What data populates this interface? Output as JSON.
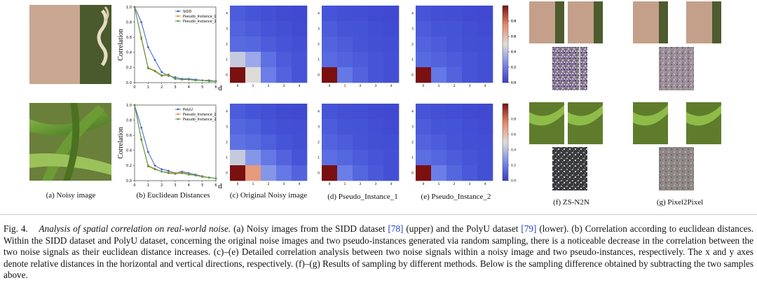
{
  "subcaptions": {
    "a": "(a) Noisy image",
    "b": "(b) Euclidean Distances",
    "c": "(c) Original Noisy image",
    "d": "(d) Pseudo_Instance_1",
    "e": "(e) Pseudo_Instance_2",
    "f": "(f) ZS-N2N",
    "g": "(g) Pixel2Pixel"
  },
  "colors": {
    "line_blue": "#3b5fd0",
    "line_orange": "#e8893a",
    "line_green": "#4f9a3f",
    "heat_red": "#8b1a1a",
    "heat_blue": "#3b3fd6"
  },
  "chart_data": [
    {
      "type": "line",
      "title": "",
      "xlabel": "d",
      "ylabel": "Correlation",
      "x": [
        0,
        1,
        2,
        3,
        4,
        5,
        6
      ],
      "xticks": [
        "0",
        "1",
        "2",
        "3",
        "4",
        "5",
        "6"
      ],
      "yticks": [
        "0.0",
        "0.2",
        "0.4",
        "0.6",
        "0.8",
        "1.0"
      ],
      "ylim": [
        0,
        1.0
      ],
      "legend": "top-right",
      "series": [
        {
          "name": "SIDD",
          "x": [
            0,
            0.5,
            1,
            1.5,
            2,
            2.5,
            3,
            3.5,
            4,
            4.5,
            5,
            5.5,
            6
          ],
          "values": [
            1.0,
            0.8,
            0.47,
            0.3,
            0.14,
            0.09,
            0.07,
            0.05,
            0.05,
            0.04,
            0.03,
            0.03,
            0.02
          ]
        },
        {
          "name": "Pseudo_Instance_1",
          "x": [
            0,
            0.5,
            1,
            1.5,
            2,
            2.5,
            3,
            3.5,
            4,
            4.5,
            5,
            5.5,
            6
          ],
          "values": [
            1.0,
            0.6,
            0.2,
            0.16,
            0.1,
            0.11,
            0.05,
            0.04,
            0.04,
            0.03,
            0.03,
            0.02,
            0.02
          ]
        },
        {
          "name": "Pseudo_Instance_2",
          "x": [
            0,
            0.5,
            1,
            1.5,
            2,
            2.5,
            3,
            3.5,
            4,
            4.5,
            5,
            5.5,
            6
          ],
          "values": [
            1.0,
            0.58,
            0.19,
            0.15,
            0.09,
            0.1,
            0.05,
            0.04,
            0.04,
            0.03,
            0.03,
            0.02,
            0.02
          ]
        }
      ]
    },
    {
      "type": "line",
      "title": "",
      "xlabel": "d",
      "ylabel": "Correlation",
      "x": [
        0,
        1,
        2,
        3,
        4,
        5,
        6
      ],
      "xticks": [
        "0",
        "1",
        "2",
        "3",
        "4",
        "5",
        "6"
      ],
      "yticks": [
        "0.0",
        "0.2",
        "0.4",
        "0.6",
        "0.8",
        "1.0"
      ],
      "ylim": [
        0,
        1.0
      ],
      "legend": "top-right",
      "series": [
        {
          "name": "PolyU",
          "x": [
            0,
            0.5,
            1,
            1.5,
            2,
            2.5,
            3,
            3.5,
            4,
            4.5,
            5,
            5.5,
            6
          ],
          "values": [
            1.0,
            0.7,
            0.38,
            0.2,
            0.15,
            0.13,
            0.1,
            0.12,
            0.1,
            0.08,
            0.06,
            0.04,
            0.03
          ]
        },
        {
          "name": "Pseudo_Instance_1",
          "x": [
            0,
            0.5,
            1,
            1.5,
            2,
            2.5,
            3,
            3.5,
            4,
            4.5,
            5,
            5.5,
            6
          ],
          "values": [
            1.0,
            0.55,
            0.2,
            0.16,
            0.12,
            0.11,
            0.1,
            0.11,
            0.09,
            0.07,
            0.06,
            0.04,
            0.03
          ]
        },
        {
          "name": "Pseudo_Instance_2",
          "x": [
            0,
            0.5,
            1,
            1.5,
            2,
            2.5,
            3,
            3.5,
            4,
            4.5,
            5,
            5.5,
            6
          ],
          "values": [
            1.0,
            0.54,
            0.19,
            0.15,
            0.12,
            0.1,
            0.09,
            0.1,
            0.08,
            0.07,
            0.05,
            0.04,
            0.03
          ]
        }
      ]
    },
    {
      "type": "heatmap",
      "name": "Original Noisy image (SIDD)",
      "xticks": [
        "0",
        "1",
        "2",
        "3",
        "4"
      ],
      "yticks": [
        "0",
        "1",
        "2",
        "3",
        "4"
      ],
      "colorbar_ticks": [
        "0.0",
        "0.2",
        "0.4",
        "0.6",
        "0.8"
      ],
      "vmin": 0,
      "vmax": 1,
      "rows_top_to_bottom": [
        [
          0.12,
          0.1,
          0.08,
          0.06,
          0.05
        ],
        [
          0.14,
          0.12,
          0.1,
          0.08,
          0.06
        ],
        [
          0.16,
          0.15,
          0.12,
          0.1,
          0.08
        ],
        [
          0.45,
          0.36,
          0.18,
          0.12,
          0.1
        ],
        [
          1.0,
          0.5,
          0.22,
          0.14,
          0.1
        ]
      ]
    },
    {
      "type": "heatmap",
      "name": "Pseudo_Instance_1 (SIDD)",
      "xticks": [
        "0",
        "1",
        "2",
        "3",
        "4"
      ],
      "yticks": [
        "0",
        "1",
        "2",
        "3",
        "4"
      ],
      "vmin": 0,
      "vmax": 1,
      "rows_top_to_bottom": [
        [
          0.1,
          0.08,
          0.07,
          0.06,
          0.05
        ],
        [
          0.12,
          0.1,
          0.09,
          0.07,
          0.06
        ],
        [
          0.14,
          0.12,
          0.1,
          0.08,
          0.07
        ],
        [
          0.16,
          0.14,
          0.12,
          0.1,
          0.08
        ],
        [
          1.0,
          0.2,
          0.14,
          0.1,
          0.08
        ]
      ]
    },
    {
      "type": "heatmap",
      "name": "Pseudo_Instance_2 (SIDD)",
      "xticks": [
        "0",
        "1",
        "2",
        "3",
        "4"
      ],
      "yticks": [
        "0",
        "1",
        "2",
        "3",
        "4"
      ],
      "colorbar_ticks": [
        "0.0",
        "0.2",
        "0.4",
        "0.6",
        "0.8"
      ],
      "vmin": 0,
      "vmax": 1,
      "rows_top_to_bottom": [
        [
          0.1,
          0.08,
          0.07,
          0.06,
          0.05
        ],
        [
          0.12,
          0.1,
          0.09,
          0.07,
          0.06
        ],
        [
          0.14,
          0.12,
          0.1,
          0.08,
          0.07
        ],
        [
          0.16,
          0.14,
          0.12,
          0.1,
          0.08
        ],
        [
          1.0,
          0.2,
          0.14,
          0.1,
          0.08
        ]
      ]
    },
    {
      "type": "heatmap",
      "name": "Original Noisy image (PolyU)",
      "xticks": [
        "0",
        "1",
        "2",
        "3",
        "4"
      ],
      "yticks": [
        "0",
        "1",
        "2",
        "3",
        "4"
      ],
      "vmin": 0,
      "vmax": 1,
      "rows_top_to_bottom": [
        [
          0.12,
          0.1,
          0.08,
          0.06,
          0.05
        ],
        [
          0.15,
          0.13,
          0.1,
          0.08,
          0.07
        ],
        [
          0.18,
          0.16,
          0.13,
          0.1,
          0.08
        ],
        [
          0.45,
          0.3,
          0.2,
          0.14,
          0.1
        ],
        [
          1.0,
          0.66,
          0.3,
          0.2,
          0.14
        ]
      ]
    },
    {
      "type": "heatmap",
      "name": "Pseudo_Instance_1 (PolyU)",
      "xticks": [
        "0",
        "1",
        "2",
        "3",
        "4"
      ],
      "yticks": [
        "0",
        "1",
        "2",
        "3",
        "4"
      ],
      "vmin": 0,
      "vmax": 1,
      "rows_top_to_bottom": [
        [
          0.1,
          0.08,
          0.07,
          0.06,
          0.05
        ],
        [
          0.12,
          0.1,
          0.09,
          0.07,
          0.06
        ],
        [
          0.14,
          0.12,
          0.1,
          0.08,
          0.07
        ],
        [
          0.17,
          0.15,
          0.12,
          0.1,
          0.08
        ],
        [
          1.0,
          0.22,
          0.15,
          0.11,
          0.08
        ]
      ]
    },
    {
      "type": "heatmap",
      "name": "Pseudo_Instance_2 (PolyU)",
      "xticks": [
        "0",
        "1",
        "2",
        "3",
        "4"
      ],
      "yticks": [
        "0",
        "1",
        "2",
        "3",
        "4"
      ],
      "colorbar_ticks": [
        "0.0",
        "0.2",
        "0.4",
        "0.6",
        "0.8"
      ],
      "vmin": 0,
      "vmax": 1,
      "rows_top_to_bottom": [
        [
          0.1,
          0.08,
          0.07,
          0.06,
          0.05
        ],
        [
          0.12,
          0.1,
          0.09,
          0.07,
          0.06
        ],
        [
          0.14,
          0.12,
          0.1,
          0.08,
          0.07
        ],
        [
          0.17,
          0.15,
          0.12,
          0.1,
          0.08
        ],
        [
          1.0,
          0.22,
          0.15,
          0.11,
          0.08
        ]
      ]
    }
  ],
  "caption": {
    "prefix": "Fig. 4.",
    "lead": "Analysis of spatial correlation on real-world noise.",
    "p1": " (a) Noisy images from the SIDD dataset ",
    "ref1": "[78]",
    "p2": " (upper) and the PolyU dataset ",
    "ref2": "[79]",
    "p3": " (lower). (b) Correlation according to euclidean distances. Within the SIDD dataset and PolyU dataset, concerning the original noise images and two pseudo-instances generated via random sampling, there is a noticeable decrease in the correlation between the two noise signals as their euclidean distance increases. (c)–(e) Detailed correlation analysis between two noise signals within a noisy image and two pseudo-instances, respectively. The x and y axes denote relative distances in the horizontal and vertical directions, respectively. (f)–(g) Results of sampling by different methods. Below is the sampling difference obtained by subtracting the two samples above."
  }
}
